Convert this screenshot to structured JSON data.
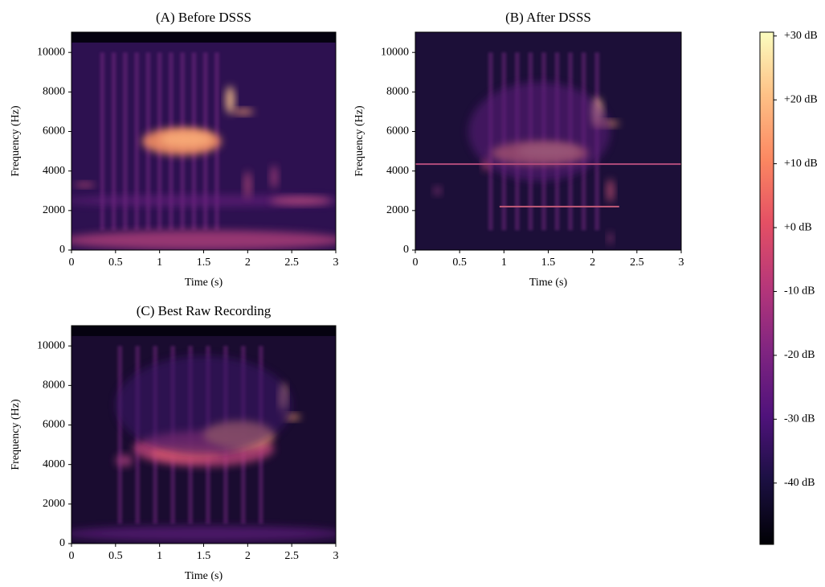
{
  "chart_data": [
    {
      "type": "spectrogram",
      "title": "(A) Before DSSS",
      "xlabel": "Time (s)",
      "ylabel": "Frequency (Hz)",
      "xlim": [
        0,
        3
      ],
      "ylim": [
        0,
        11025
      ],
      "xticks": [
        0,
        0.5,
        1,
        1.5,
        2,
        2.5,
        3
      ],
      "yticks": [
        0,
        2000,
        4000,
        6000,
        8000,
        10000
      ]
    },
    {
      "type": "spectrogram",
      "title": "(B) After DSSS",
      "xlabel": "Time (s)",
      "ylabel": "Frequency (Hz)",
      "xlim": [
        0,
        3
      ],
      "ylim": [
        0,
        11025
      ],
      "xticks": [
        0,
        0.5,
        1,
        1.5,
        2,
        2.5,
        3
      ],
      "yticks": [
        0,
        2000,
        4000,
        6000,
        8000,
        10000
      ]
    },
    {
      "type": "spectrogram",
      "title": "(C) Best Raw Recording",
      "xlabel": "Time (s)",
      "ylabel": "Frequency (Hz)",
      "xlim": [
        0,
        3
      ],
      "ylim": [
        0,
        11025
      ],
      "xticks": [
        0,
        0.5,
        1,
        1.5,
        2,
        2.5,
        3
      ],
      "yticks": [
        0,
        2000,
        4000,
        6000,
        8000,
        10000
      ]
    },
    {
      "type": "colorbar",
      "ylim": [
        -49.6,
        30.6
      ],
      "yticks": [
        {
          "value": 30,
          "label": "+30 dB"
        },
        {
          "value": 20,
          "label": "+20 dB"
        },
        {
          "value": 10,
          "label": "+10 dB"
        },
        {
          "value": 0,
          "label": "+0 dB"
        },
        {
          "value": -10,
          "label": "-10 dB"
        },
        {
          "value": -20,
          "label": "-20 dB"
        },
        {
          "value": -30,
          "label": "-30 dB"
        },
        {
          "value": -40,
          "label": "-40 dB"
        }
      ]
    }
  ]
}
